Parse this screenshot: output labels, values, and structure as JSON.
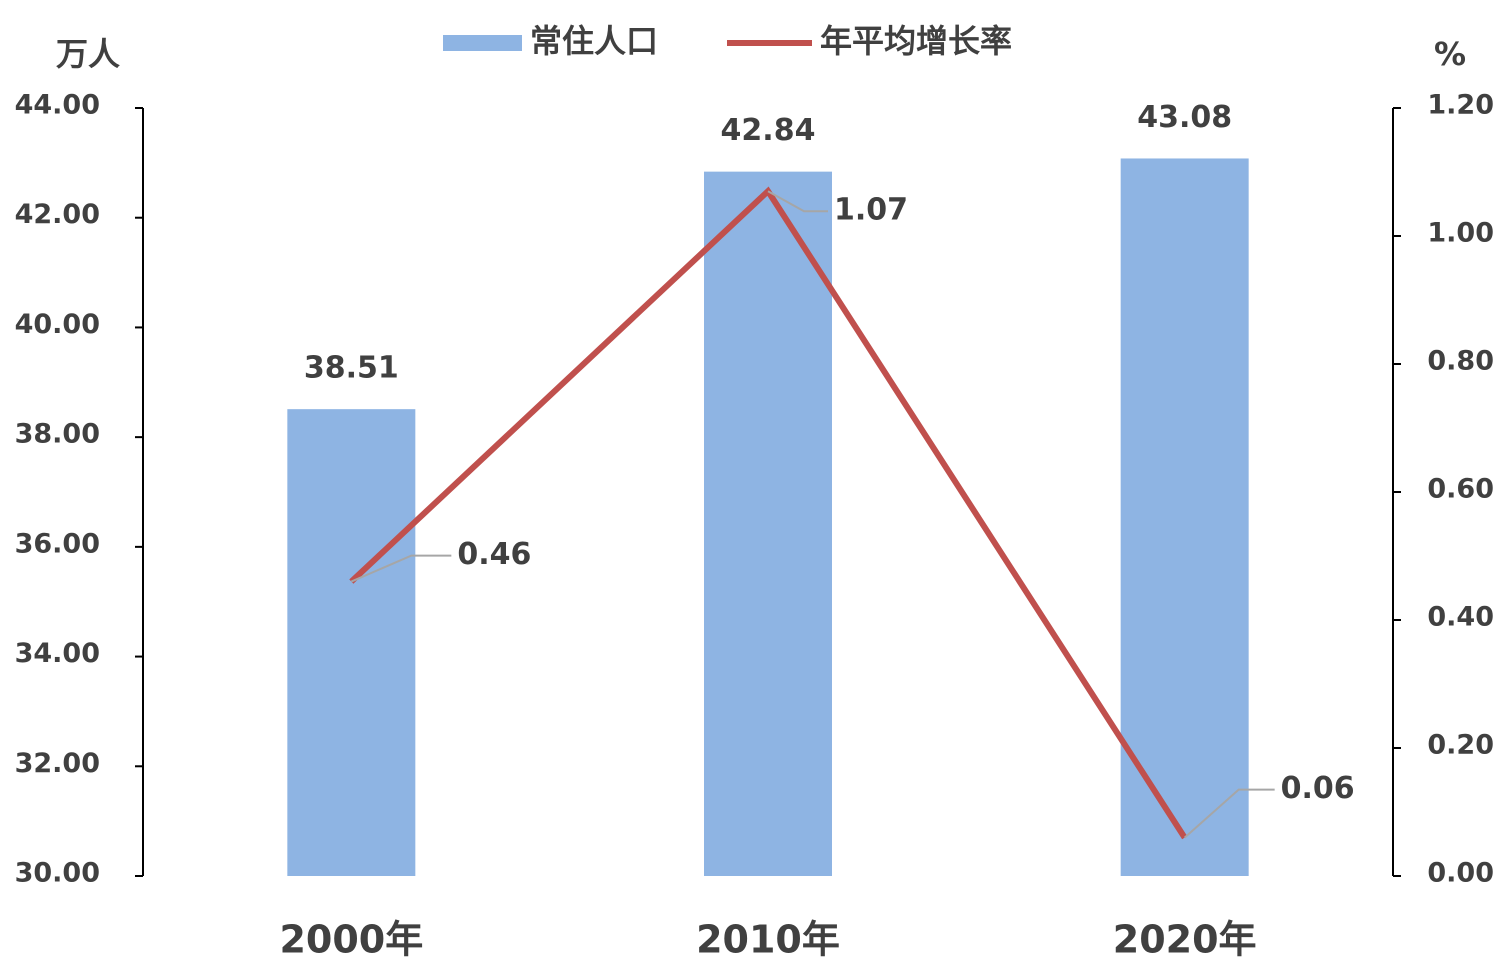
{
  "chart_data": {
    "type": "bar-line",
    "y_label": "万人",
    "y2_label": "%",
    "categories": [
      "2000年",
      "2010年",
      "2020年"
    ],
    "series": [
      {
        "name": "常住人口",
        "type": "bar",
        "color": "#8eb4e3",
        "values": [
          38.51,
          42.84,
          43.08
        ]
      },
      {
        "name": "年平均增长率",
        "type": "line",
        "axis": "y2",
        "color": "#c0504d",
        "values": [
          0.46,
          1.07,
          0.06
        ]
      }
    ],
    "ylim": [
      30,
      44
    ],
    "yticks": [
      {
        "value": 30,
        "label": "30.00"
      },
      {
        "value": 32,
        "label": "32.00"
      },
      {
        "value": 34,
        "label": "34.00"
      },
      {
        "value": 36,
        "label": "36.00"
      },
      {
        "value": 38,
        "label": "38.00"
      },
      {
        "value": 40,
        "label": "40.00"
      },
      {
        "value": 42,
        "label": "42.00"
      },
      {
        "value": 44,
        "label": "44.00"
      }
    ],
    "y2lim": [
      0,
      1.2
    ],
    "y2ticks": [
      {
        "value": 0,
        "label": "0.00"
      },
      {
        "value": 0.2,
        "label": "0.20"
      },
      {
        "value": 0.4,
        "label": "0.40"
      },
      {
        "value": 0.6,
        "label": "0.60"
      },
      {
        "value": 0.8,
        "label": "0.80"
      },
      {
        "value": 1.0,
        "label": "1.00"
      },
      {
        "value": 1.2,
        "label": "1.20"
      }
    ],
    "legend": "top"
  }
}
